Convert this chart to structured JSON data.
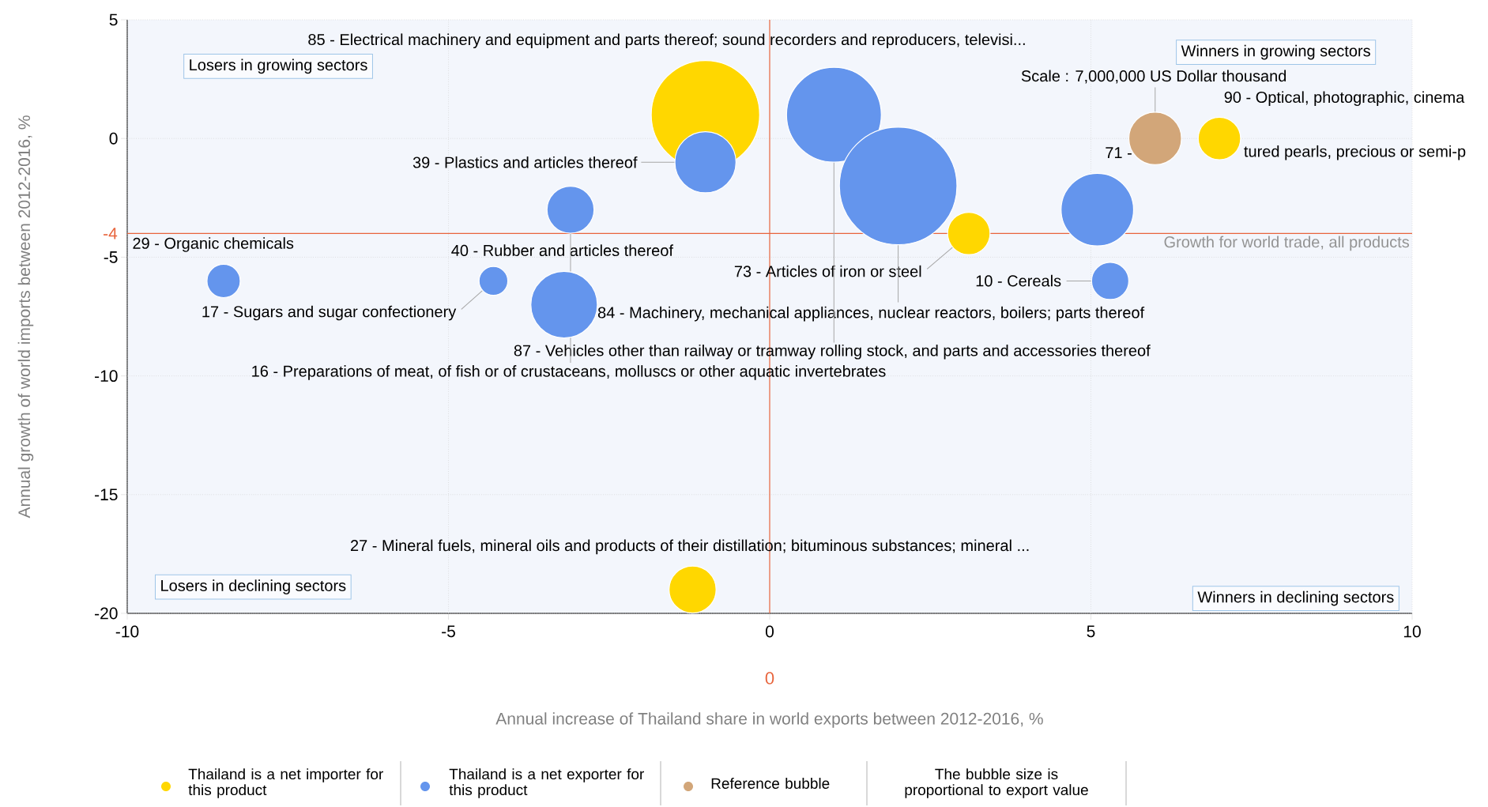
{
  "chart_data": {
    "type": "bubble",
    "xlabel": "Annual increase of Thailand share in world exports between 2012-2016, %",
    "ylabel": "Annual growth of world imports between 2012-2016, %",
    "xlim": [
      -10,
      10
    ],
    "xticks": [
      -10,
      -5,
      0,
      5,
      10
    ],
    "ylim": [
      -20,
      5
    ],
    "yticks": [
      5,
      0,
      -5,
      -10,
      -15,
      -20
    ],
    "grid": true,
    "legend": "bottom",
    "series": [
      {
        "name": "Thailand is a net importer for this product",
        "color": "#ffd700",
        "x": [
          -1,
          7,
          3.1,
          -1.2
        ],
        "values": [
          1,
          0,
          -4,
          -19
        ],
        "sizes": [
          0.85,
          0.13,
          0.13,
          0.16
        ]
      },
      {
        "name": "Thailand is a net exporter for this product",
        "color": "#6495ed",
        "x": [
          -1,
          1,
          2,
          5.3,
          5.1,
          -3.1,
          -3.2,
          -4.3,
          -8.5
        ],
        "values": [
          -1,
          1,
          -2,
          -6,
          -3,
          -3,
          -7,
          -6,
          -6
        ],
        "sizes": [
          0.27,
          0.65,
          1,
          0.1,
          0.38,
          0.16,
          0.32,
          0.06,
          0.08
        ]
      },
      {
        "name": "Reference bubble",
        "color": "#d2a679",
        "x": [
          6
        ],
        "values": [
          0
        ],
        "sizes": [
          0.2
        ]
      }
    ],
    "ref_lines": [
      {
        "axis": "y",
        "value": -4,
        "label": "-4",
        "color": "#e8643c"
      },
      {
        "axis": "x",
        "value": 0,
        "label": "0",
        "color": "#e8643c"
      }
    ],
    "annotations": [
      "Losers in growing sectors",
      "Winners in growing sectors",
      "Losers in declining sectors",
      "Winners in declining sectors",
      {
        "text": "Scale : 7,000,000 US Dollar thousand",
        "x": 6,
        "y": 0
      },
      "85 - Electrical machinery and equipment and parts thereof; sound recorders and reproducers, televisi...",
      "90 - Optical, photographic, cinema",
      "71 -",
      "tured pearls, precious or semi-p",
      {
        "text": "39 - Plastics and articles thereof",
        "x": -1,
        "y": -1
      },
      "29 - Organic chemicals",
      "40 - Rubber and articles thereof",
      {
        "text": "73 - Articles of iron or steel",
        "x": 3.1,
        "y": -4
      },
      {
        "text": "10 - Cereals",
        "x": 5.3,
        "y": -6
      },
      {
        "text": "17 - Sugars and sugar confectionery",
        "x": -4.3,
        "y": -6
      },
      {
        "text": "84 - Machinery, mechanical appliances, nuclear reactors, boilers; parts thereof",
        "x": 2,
        "y": -2
      },
      {
        "text": "87 - Vehicles other than railway or tramway rolling stock, and parts and accessories thereof",
        "x": 1,
        "y": 1
      },
      {
        "text": "16 - Preparations of meat, of fish or of crustaceans, molluscs or other aquatic invertebrates",
        "x": -3.1,
        "y": -3
      },
      "27 - Mineral fuels, mineral oils and products of their distillation; bituminous substances; mineral ...",
      "The bubble size is proportional to export value",
      {
        "text": "Growth for world trade, all products",
        "x": 10,
        "y": -4
      }
    ]
  }
}
